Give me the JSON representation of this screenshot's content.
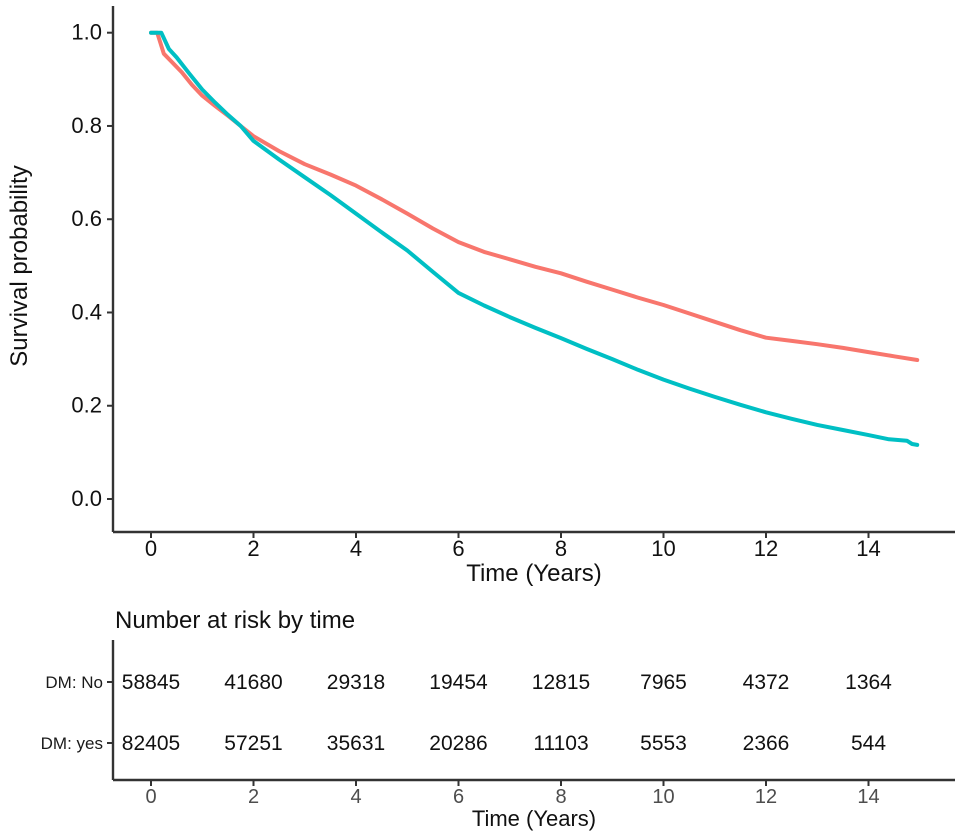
{
  "chart_data": {
    "type": "line",
    "subtype": "kaplan-meier-survival",
    "title": "",
    "xlabel": "Time (Years)",
    "ylabel": "Survival probability",
    "xlim": [
      0,
      15.7
    ],
    "ylim": [
      0.0,
      1.0
    ],
    "x_ticks": [
      0,
      2,
      4,
      6,
      8,
      10,
      12,
      14
    ],
    "y_ticks": [
      "0.0",
      "0.2",
      "0.4",
      "0.6",
      "0.8",
      "1.0"
    ],
    "grid": false,
    "legend_position": "none",
    "series": [
      {
        "name": "DM: No",
        "color": "#F8766D",
        "x": [
          0,
          0.12,
          0.25,
          0.4,
          0.6,
          0.8,
          1.0,
          1.25,
          1.5,
          1.75,
          2.0,
          2.5,
          3.0,
          3.5,
          4.0,
          4.5,
          5.0,
          5.5,
          6.0,
          6.5,
          7.0,
          7.5,
          8.0,
          8.5,
          9.0,
          9.5,
          10.0,
          10.5,
          11.0,
          11.5,
          12.0,
          12.5,
          13.0,
          13.5,
          14.0,
          14.5,
          14.95
        ],
        "y": [
          1.0,
          1.0,
          0.955,
          0.938,
          0.915,
          0.888,
          0.865,
          0.843,
          0.822,
          0.8,
          0.778,
          0.746,
          0.718,
          0.696,
          0.672,
          0.643,
          0.612,
          0.58,
          0.551,
          0.53,
          0.514,
          0.498,
          0.484,
          0.466,
          0.449,
          0.432,
          0.416,
          0.398,
          0.38,
          0.362,
          0.346,
          0.339,
          0.332,
          0.324,
          0.315,
          0.306,
          0.298
        ]
      },
      {
        "name": "DM: yes",
        "color": "#00BFC4",
        "x": [
          0,
          0.2,
          0.35,
          0.5,
          0.75,
          1.0,
          1.25,
          1.5,
          1.75,
          2.0,
          2.5,
          3.0,
          3.5,
          4.0,
          4.5,
          5.0,
          5.5,
          6.0,
          6.5,
          7.0,
          7.5,
          8.0,
          8.5,
          9.0,
          9.5,
          10.0,
          10.5,
          11.0,
          11.5,
          12.0,
          12.5,
          13.0,
          13.5,
          14.0,
          14.4,
          14.75,
          14.85,
          14.95
        ],
        "y": [
          1.0,
          1.0,
          0.965,
          0.947,
          0.912,
          0.878,
          0.85,
          0.824,
          0.8,
          0.768,
          0.728,
          0.69,
          0.652,
          0.612,
          0.572,
          0.533,
          0.487,
          0.442,
          0.415,
          0.39,
          0.367,
          0.345,
          0.322,
          0.3,
          0.277,
          0.256,
          0.237,
          0.219,
          0.202,
          0.186,
          0.172,
          0.159,
          0.148,
          0.137,
          0.128,
          0.125,
          0.118,
          0.116
        ]
      }
    ]
  },
  "risk_table": {
    "title": "Number at risk by time",
    "xlabel": "Time (Years)",
    "x_ticks": [
      0,
      2,
      4,
      6,
      8,
      10,
      12,
      14
    ],
    "rows": [
      {
        "label": "DM: No",
        "color": "#F8766D",
        "values": [
          "58845",
          "41680",
          "29318",
          "19454",
          "12815",
          "7965",
          "4372",
          "1364"
        ]
      },
      {
        "label": "DM: yes",
        "color": "#00BFC4",
        "values": [
          "82405",
          "57251",
          "35631",
          "20286",
          "11103",
          "5553",
          "2366",
          "544"
        ]
      }
    ]
  },
  "colors": {
    "axis_line": "#333333",
    "tick_label": "#111111",
    "risk_tick_label": "#4d4d4d",
    "series_no": "#F8766D",
    "series_yes": "#00BFC4"
  }
}
